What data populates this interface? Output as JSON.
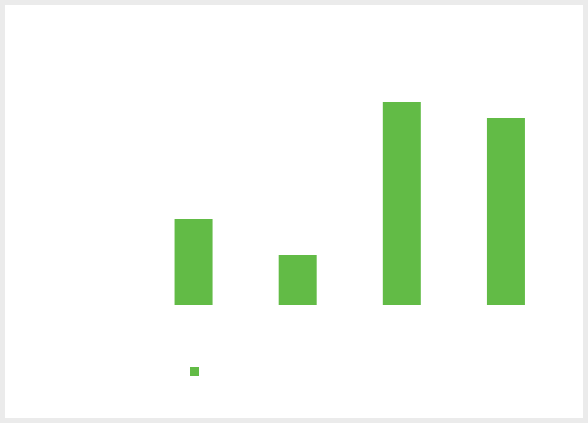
{
  "chart_data": {
    "type": "bar",
    "categories": [
      null,
      null,
      null,
      null
    ],
    "series": [
      {
        "color": "#62bb46",
        "values": [
          86,
          50,
          203,
          187
        ]
      }
    ],
    "ylim": [
      0,
      210
    ]
  }
}
